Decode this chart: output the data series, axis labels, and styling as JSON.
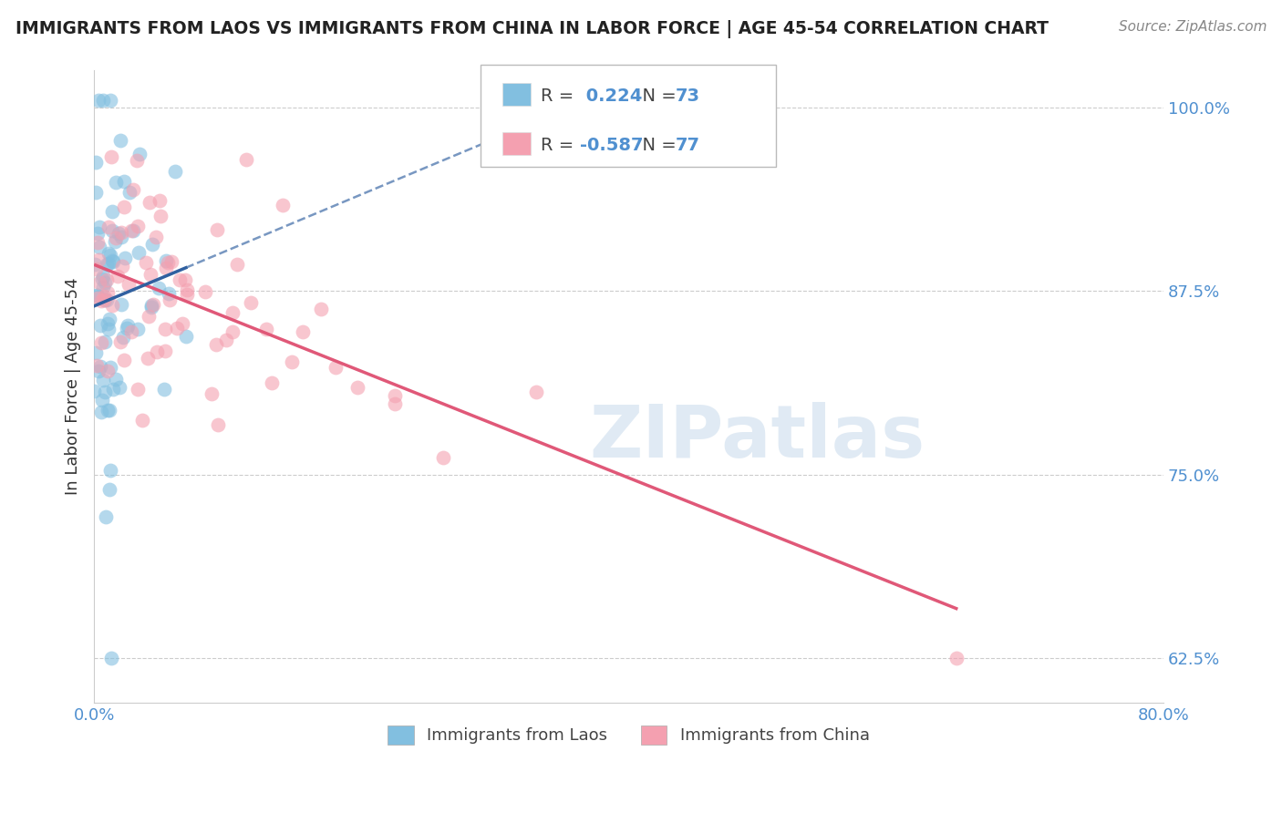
{
  "title": "IMMIGRANTS FROM LAOS VS IMMIGRANTS FROM CHINA IN LABOR FORCE | AGE 45-54 CORRELATION CHART",
  "source": "Source: ZipAtlas.com",
  "ylabel": "In Labor Force | Age 45-54",
  "legend_labels": [
    "Immigrants from Laos",
    "Immigrants from China"
  ],
  "r_laos": 0.224,
  "n_laos": 73,
  "r_china": -0.587,
  "n_china": 77,
  "xlim": [
    0.0,
    0.8
  ],
  "ylim": [
    0.595,
    1.025
  ],
  "yticks": [
    0.625,
    0.75,
    0.875,
    1.0
  ],
  "ytick_labels": [
    "62.5%",
    "75.0%",
    "87.5%",
    "100.0%"
  ],
  "color_laos": "#82bfe0",
  "color_china": "#f4a0b0",
  "line_color_laos": "#3060a0",
  "line_color_china": "#e05878",
  "bg_color": "#ffffff",
  "watermark": "ZIPatlas",
  "grid_color": "#cccccc",
  "tick_label_color": "#5090d0",
  "title_color": "#222222",
  "source_color": "#888888",
  "ylabel_color": "#333333"
}
